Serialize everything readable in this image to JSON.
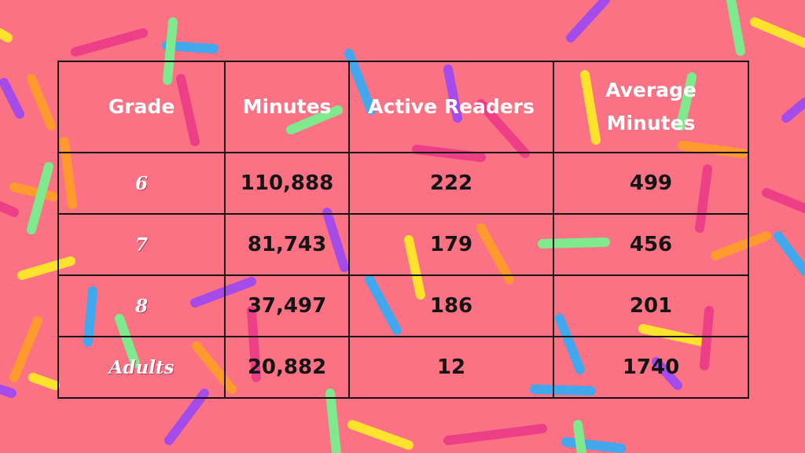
{
  "colors": {
    "background": "#fb7285",
    "grid": "#141414",
    "header_text": "#ffffff",
    "body_text": "#141414",
    "sprinkle_palette": [
      "#ffe22e",
      "#a44bea",
      "#41a8ee",
      "#ff9a2e",
      "#7ee98d",
      "#ec3f86"
    ]
  },
  "table": {
    "headers": [
      "Grade",
      "Minutes",
      "Active Readers",
      "Average Minutes"
    ],
    "rows": [
      {
        "grade": "6",
        "minutes": "110,888",
        "active_readers": "222",
        "average_minutes": "499"
      },
      {
        "grade": "7",
        "minutes": "81,743",
        "active_readers": "179",
        "average_minutes": "456"
      },
      {
        "grade": "8",
        "minutes": "37,497",
        "active_readers": "186",
        "average_minutes": "201"
      },
      {
        "grade": "Adults",
        "minutes": "20,882",
        "active_readers": "12",
        "average_minutes": "1740"
      }
    ]
  },
  "chart_data": {
    "type": "table",
    "columns": [
      "Grade",
      "Minutes",
      "Active Readers",
      "Average Minutes"
    ],
    "rows": [
      [
        "6",
        110888,
        222,
        499
      ],
      [
        "7",
        81743,
        179,
        456
      ],
      [
        "8",
        37497,
        186,
        201
      ],
      [
        "Adults",
        20882,
        12,
        1740
      ]
    ]
  }
}
